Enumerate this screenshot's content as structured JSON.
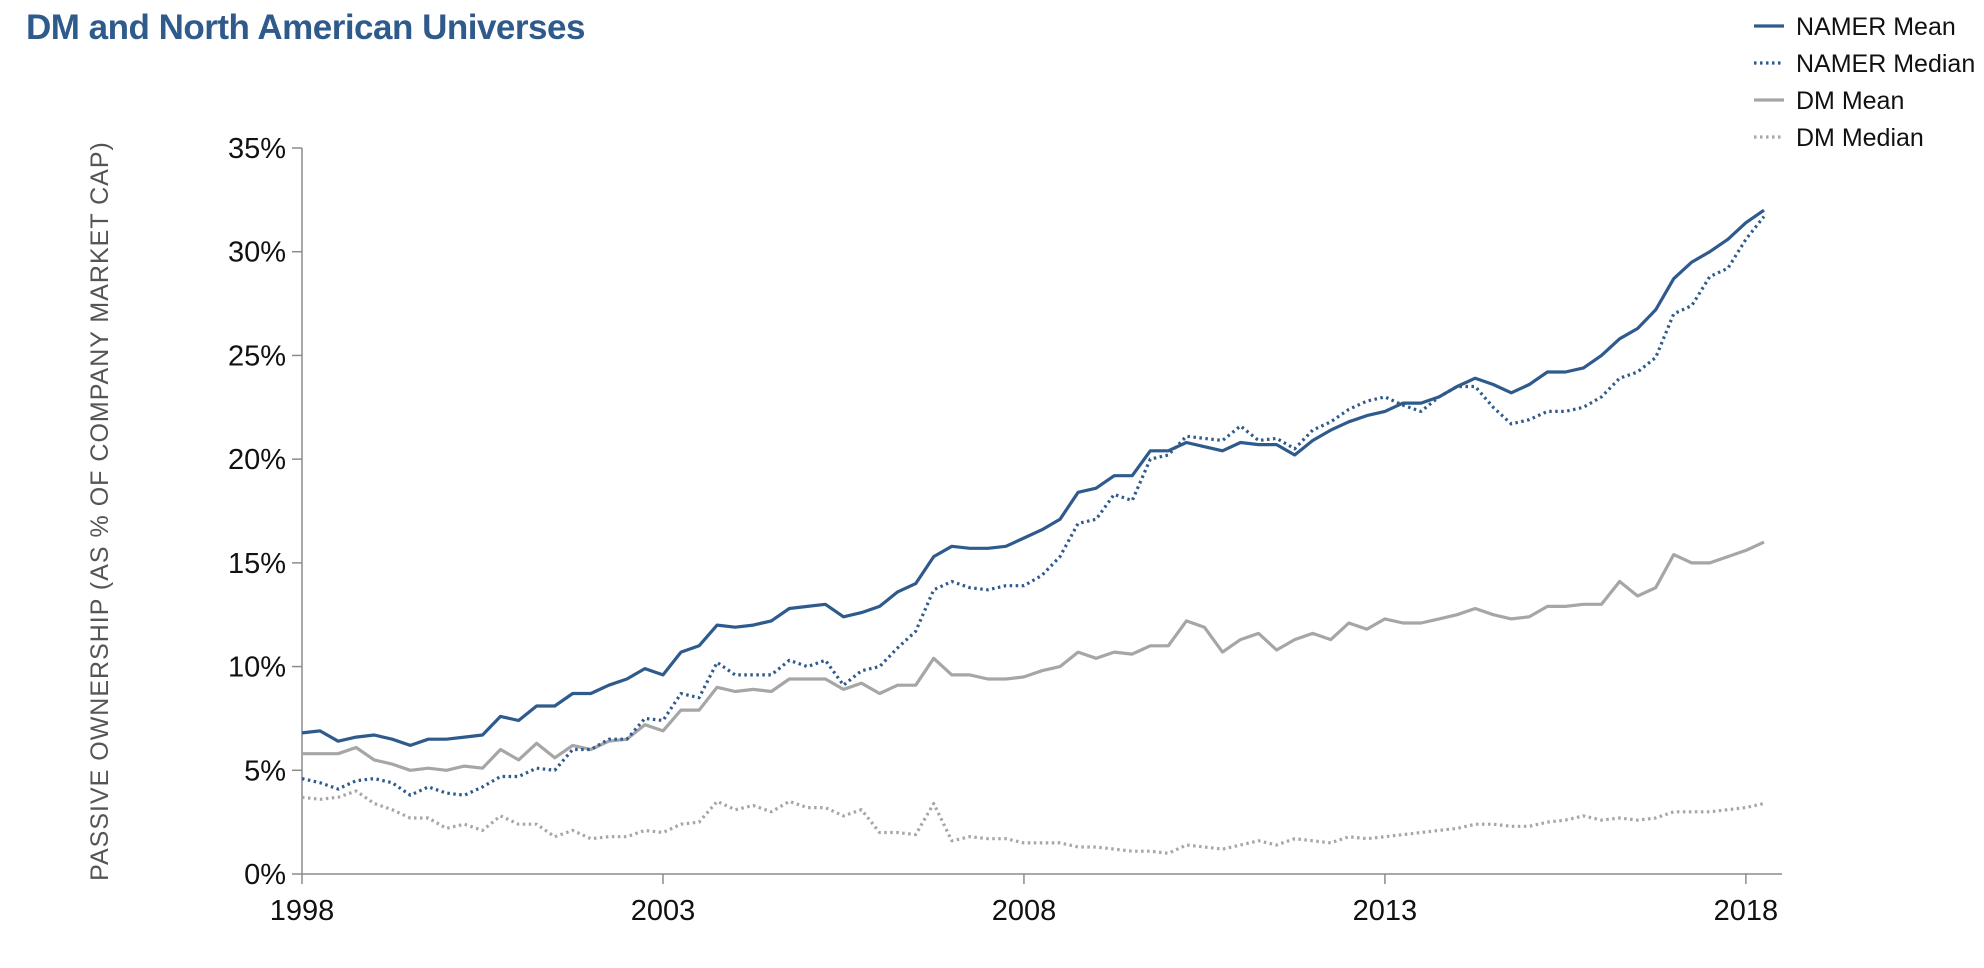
{
  "title": "DM and North American Universes",
  "chart_data": {
    "type": "line",
    "title": "DM and North American Universes",
    "xlabel": "",
    "ylabel": "PASSIVE OWNERSHIP (AS % OF COMPANY MARKET CAP)",
    "xlim": [
      1998.0,
      2018.5
    ],
    "ylim": [
      0,
      35
    ],
    "x_ticks": [
      1998,
      2003,
      2008,
      2013,
      2018
    ],
    "x_tick_labels": [
      "1998",
      "2003",
      "2008",
      "2013",
      "2018"
    ],
    "y_ticks": [
      0,
      5,
      10,
      15,
      20,
      25,
      30,
      35
    ],
    "y_tick_labels": [
      "0%",
      "5%",
      "10%",
      "15%",
      "20%",
      "25%",
      "30%",
      "35%"
    ],
    "grid": false,
    "legend_position": "top-right",
    "series": [
      {
        "name": "NAMER Mean",
        "color": "#2e5a8c",
        "style": "solid",
        "x_start": 1998.0,
        "x_step": 0.25,
        "values": [
          6.8,
          6.9,
          6.4,
          6.6,
          6.7,
          6.5,
          6.2,
          6.5,
          6.5,
          6.6,
          6.7,
          7.6,
          7.4,
          8.1,
          8.1,
          8.7,
          8.7,
          9.1,
          9.4,
          9.9,
          9.6,
          10.7,
          11.0,
          12.0,
          11.9,
          12.0,
          12.2,
          12.8,
          12.9,
          13.0,
          12.4,
          12.6,
          12.9,
          13.6,
          14.0,
          15.3,
          15.8,
          15.7,
          15.7,
          15.8,
          16.2,
          16.6,
          17.1,
          18.4,
          18.6,
          19.2,
          19.2,
          20.4,
          20.4,
          20.8,
          20.6,
          20.4,
          20.8,
          20.7,
          20.7,
          20.2,
          20.9,
          21.4,
          21.8,
          22.1,
          22.3,
          22.7,
          22.7,
          23.0,
          23.5,
          23.9,
          23.6,
          23.2,
          23.6,
          24.2,
          24.2,
          24.4,
          25.0,
          25.8,
          26.3,
          27.2,
          28.7,
          29.5,
          30.0,
          30.6,
          31.4,
          32.0
        ]
      },
      {
        "name": "NAMER Median",
        "color": "#2e5a8c",
        "style": "dotted",
        "x_start": 1998.0,
        "x_step": 0.25,
        "values": [
          4.6,
          4.4,
          4.1,
          4.5,
          4.6,
          4.4,
          3.8,
          4.2,
          3.9,
          3.8,
          4.2,
          4.7,
          4.7,
          5.1,
          5.0,
          6.0,
          6.0,
          6.5,
          6.5,
          7.5,
          7.4,
          8.7,
          8.5,
          10.2,
          9.6,
          9.6,
          9.6,
          10.3,
          10.0,
          10.3,
          9.1,
          9.8,
          10.0,
          10.9,
          11.7,
          13.7,
          14.1,
          13.8,
          13.7,
          13.9,
          13.9,
          14.4,
          15.3,
          16.9,
          17.1,
          18.3,
          18.0,
          20.0,
          20.2,
          21.1,
          21.0,
          20.9,
          21.6,
          20.9,
          21.0,
          20.5,
          21.4,
          21.8,
          22.4,
          22.8,
          23.0,
          22.6,
          22.3,
          23.0,
          23.5,
          23.5,
          22.5,
          21.7,
          21.9,
          22.3,
          22.3,
          22.5,
          23.0,
          23.9,
          24.2,
          24.9,
          27.0,
          27.4,
          28.8,
          29.2,
          30.6,
          31.7
        ]
      },
      {
        "name": "DM Mean",
        "color": "#a6a6a6",
        "style": "solid",
        "x_start": 1998.0,
        "x_step": 0.25,
        "values": [
          5.8,
          5.8,
          5.8,
          6.1,
          5.5,
          5.3,
          5.0,
          5.1,
          5.0,
          5.2,
          5.1,
          6.0,
          5.5,
          6.3,
          5.6,
          6.2,
          6.0,
          6.4,
          6.5,
          7.2,
          6.9,
          7.9,
          7.9,
          9.0,
          8.8,
          8.9,
          8.8,
          9.4,
          9.4,
          9.4,
          8.9,
          9.2,
          8.7,
          9.1,
          9.1,
          10.4,
          9.6,
          9.6,
          9.4,
          9.4,
          9.5,
          9.8,
          10.0,
          10.7,
          10.4,
          10.7,
          10.6,
          11.0,
          11.0,
          12.2,
          11.9,
          10.7,
          11.3,
          11.6,
          10.8,
          11.3,
          11.6,
          11.3,
          12.1,
          11.8,
          12.3,
          12.1,
          12.1,
          12.3,
          12.5,
          12.8,
          12.5,
          12.3,
          12.4,
          12.9,
          12.9,
          13.0,
          13.0,
          14.1,
          13.4,
          13.8,
          15.4,
          15.0,
          15.0,
          15.3,
          15.6,
          16.0
        ]
      },
      {
        "name": "DM Median",
        "color": "#a6a6a6",
        "style": "dotted",
        "x_start": 1998.0,
        "x_step": 0.25,
        "values": [
          3.7,
          3.6,
          3.7,
          4.0,
          3.4,
          3.1,
          2.7,
          2.7,
          2.2,
          2.4,
          2.1,
          2.8,
          2.4,
          2.4,
          1.8,
          2.1,
          1.7,
          1.8,
          1.8,
          2.1,
          2.0,
          2.4,
          2.5,
          3.5,
          3.1,
          3.3,
          3.0,
          3.5,
          3.2,
          3.2,
          2.8,
          3.1,
          2.0,
          2.0,
          1.9,
          3.4,
          1.6,
          1.8,
          1.7,
          1.7,
          1.5,
          1.5,
          1.5,
          1.3,
          1.3,
          1.2,
          1.1,
          1.1,
          1.0,
          1.4,
          1.3,
          1.2,
          1.4,
          1.6,
          1.4,
          1.7,
          1.6,
          1.5,
          1.8,
          1.7,
          1.8,
          1.9,
          2.0,
          2.1,
          2.2,
          2.4,
          2.4,
          2.3,
          2.3,
          2.5,
          2.6,
          2.8,
          2.6,
          2.7,
          2.6,
          2.7,
          3.0,
          3.0,
          3.0,
          3.1,
          3.2,
          3.4
        ]
      }
    ]
  }
}
